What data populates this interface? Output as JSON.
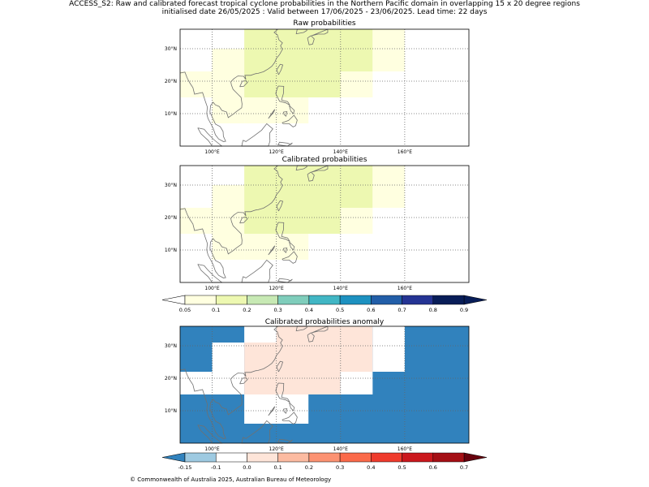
{
  "header": {
    "line1": "ACCESS_S2: Raw and calibrated forecast tropical cyclone probabilities in the Northern Pacific domain in overlapping 15 x 20 degree regions",
    "line2": "initialised date 26/05/2025 :  Valid between 17/06/2025 - 23/06/2025. Lead time: 22 days"
  },
  "footer": {
    "text": "© Commonwealth of Australia 2025, Australian Bureau of Meteorology"
  },
  "chart_data": [
    {
      "type": "heatmap",
      "title": "Raw probabilities",
      "xlim": [
        90,
        180
      ],
      "ylim": [
        0,
        36
      ],
      "xticks": [
        100,
        120,
        140,
        160
      ],
      "xtick_labels": [
        "100°E",
        "120°E",
        "140°E",
        "160°E"
      ],
      "yticks": [
        10,
        20,
        30
      ],
      "ytick_labels": [
        "10°N",
        "20°N",
        "30°N"
      ],
      "grid": true,
      "cells": [
        {
          "lon": [
            110,
            150
          ],
          "lat": [
            34,
            36
          ],
          "value": 0.1
        },
        {
          "lon": [
            150,
            160
          ],
          "lat": [
            34,
            36
          ],
          "value": 0.05
        },
        {
          "lon": [
            100,
            110
          ],
          "lat": [
            23,
            30
          ],
          "value": 0.05
        },
        {
          "lon": [
            110,
            150
          ],
          "lat": [
            23,
            34
          ],
          "value": 0.1
        },
        {
          "lon": [
            150,
            160
          ],
          "lat": [
            23,
            34
          ],
          "value": 0.05
        },
        {
          "lon": [
            90,
            100
          ],
          "lat": [
            15,
            23
          ],
          "value": 0.05
        },
        {
          "lon": [
            100,
            110
          ],
          "lat": [
            15,
            23
          ],
          "value": 0.05
        },
        {
          "lon": [
            110,
            140
          ],
          "lat": [
            15,
            23
          ],
          "value": 0.1
        },
        {
          "lon": [
            140,
            150
          ],
          "lat": [
            15,
            23
          ],
          "value": 0.05
        },
        {
          "lon": [
            100,
            110
          ],
          "lat": [
            7,
            15
          ],
          "value": 0.05
        },
        {
          "lon": [
            110,
            130
          ],
          "lat": [
            7,
            15
          ],
          "value": 0.05
        }
      ]
    },
    {
      "type": "heatmap",
      "title": "Calibrated probabilities",
      "xlim": [
        90,
        180
      ],
      "ylim": [
        0,
        36
      ],
      "xticks": [
        100,
        120,
        140,
        160
      ],
      "xtick_labels": [
        "100°E",
        "120°E",
        "140°E",
        "160°E"
      ],
      "yticks": [
        10,
        20,
        30
      ],
      "ytick_labels": [
        "10°N",
        "20°N",
        "30°N"
      ],
      "grid": true,
      "cells": [
        {
          "lon": [
            110,
            140
          ],
          "lat": [
            34,
            36
          ],
          "value": 0.1
        },
        {
          "lon": [
            140,
            150
          ],
          "lat": [
            34,
            36
          ],
          "value": 0.1
        },
        {
          "lon": [
            150,
            160
          ],
          "lat": [
            34,
            36
          ],
          "value": 0.05
        },
        {
          "lon": [
            100,
            110
          ],
          "lat": [
            23,
            30
          ],
          "value": 0.05
        },
        {
          "lon": [
            110,
            150
          ],
          "lat": [
            23,
            34
          ],
          "value": 0.1
        },
        {
          "lon": [
            150,
            160
          ],
          "lat": [
            23,
            34
          ],
          "value": 0.05
        },
        {
          "lon": [
            90,
            100
          ],
          "lat": [
            15,
            23
          ],
          "value": 0.05
        },
        {
          "lon": [
            100,
            110
          ],
          "lat": [
            15,
            23
          ],
          "value": 0.05
        },
        {
          "lon": [
            110,
            140
          ],
          "lat": [
            15,
            23
          ],
          "value": 0.1
        },
        {
          "lon": [
            140,
            150
          ],
          "lat": [
            15,
            23
          ],
          "value": 0.05
        },
        {
          "lon": [
            100,
            110
          ],
          "lat": [
            7,
            15
          ],
          "value": 0.05
        },
        {
          "lon": [
            110,
            130
          ],
          "lat": [
            7,
            15
          ],
          "value": 0.05
        }
      ]
    },
    {
      "type": "heatmap",
      "title": "Calibrated probabilities anomaly",
      "xlim": [
        90,
        180
      ],
      "ylim": [
        0,
        36
      ],
      "xticks": [
        100,
        120,
        140,
        160
      ],
      "xtick_labels": [
        "100°E",
        "120°E",
        "140°E",
        "160°E"
      ],
      "yticks": [
        10,
        20,
        30
      ],
      "ytick_labels": [
        "10°N",
        "20°N",
        "30°N"
      ],
      "grid": true,
      "cells": [
        {
          "lon": [
            90,
            180
          ],
          "lat": [
            0,
            36
          ],
          "value": -0.15
        },
        {
          "lon": [
            110,
            120
          ],
          "lat": [
            31,
            36
          ],
          "value": -0.1
        },
        {
          "lon": [
            120,
            150
          ],
          "lat": [
            31,
            36
          ],
          "value": 0.0
        },
        {
          "lon": [
            100,
            110
          ],
          "lat": [
            22,
            31
          ],
          "value": -0.1
        },
        {
          "lon": [
            110,
            150
          ],
          "lat": [
            22,
            31
          ],
          "value": 0.0
        },
        {
          "lon": [
            150,
            160
          ],
          "lat": [
            22,
            36
          ],
          "value": -0.1
        },
        {
          "lon": [
            90,
            100
          ],
          "lat": [
            15,
            22
          ],
          "value": -0.1
        },
        {
          "lon": [
            100,
            110
          ],
          "lat": [
            15,
            22
          ],
          "value": -0.1
        },
        {
          "lon": [
            110,
            140
          ],
          "lat": [
            15,
            22
          ],
          "value": 0.0
        },
        {
          "lon": [
            140,
            150
          ],
          "lat": [
            15,
            22
          ],
          "value": -0.1
        },
        {
          "lon": [
            110,
            130
          ],
          "lat": [
            6,
            15
          ],
          "value": -0.1
        }
      ]
    }
  ],
  "colorbar_prob": {
    "tick_labels": [
      "0.05",
      "0.1",
      "0.2",
      "0.3",
      "0.4",
      "0.5",
      "0.6",
      "0.7",
      "0.8",
      "0.9"
    ],
    "colors": [
      "#ffffe0",
      "#edf8b1",
      "#c7e9b4",
      "#7fcdbb",
      "#41b6c4",
      "#1d91c0",
      "#225ea8",
      "#253494",
      "#081d58"
    ],
    "under_color": "#ffffff",
    "over_color": "#081d58"
  },
  "colorbar_anom": {
    "tick_labels": [
      "-0.15",
      "-0.1",
      "0.0",
      "0.1",
      "0.2",
      "0.3",
      "0.4",
      "0.5",
      "0.6",
      "0.7"
    ],
    "colors": [
      "#9ecae1",
      "#ffffff",
      "#fee5d9",
      "#fcbba1",
      "#fc9272",
      "#fb6a4a",
      "#ef3b2c",
      "#cb181d",
      "#a50f15"
    ],
    "under_color": "#3182bd",
    "over_color": "#67000d"
  },
  "styles": {
    "prob_low_color": "#ffffe0",
    "prob_mid_color": "#edf8b1",
    "anom_neg_strong": "#3182bd",
    "anom_neg_weak": "#9ecae1",
    "anom_zero": "#ffffff",
    "coast_color": "#707070"
  }
}
